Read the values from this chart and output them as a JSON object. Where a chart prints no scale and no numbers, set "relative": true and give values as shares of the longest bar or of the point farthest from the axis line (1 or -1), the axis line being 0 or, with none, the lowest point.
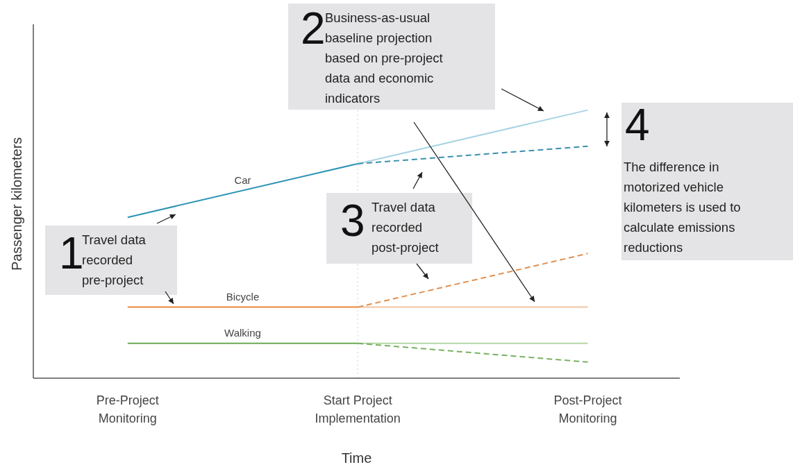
{
  "chart_data": {
    "type": "line",
    "relative": true,
    "xlabel": "Time",
    "ylabel": "Passenger kilometers",
    "categories": [
      "Pre-Project Monitoring",
      "Start Project Implementation",
      "Post-Project Monitoring"
    ],
    "marker": "none",
    "tick_labels": "x",
    "series": [
      {
        "name": "Car",
        "color": "#2c94b4",
        "line_style": "solid",
        "values": [
          0.6,
          0.8,
          null
        ]
      },
      {
        "color": "#a8d4e4",
        "line_style": "solid",
        "values": [
          null,
          0.8,
          1
        ]
      },
      {
        "color": "#3a8fae",
        "line_style": "dashed",
        "values": [
          null,
          0.8,
          0.865
        ]
      },
      {
        "name": "Bicycle",
        "color": "#e8893a",
        "line_style": "solid",
        "values": [
          0.265,
          0.265,
          null
        ]
      },
      {
        "color": "#f2c4a0",
        "line_style": "solid",
        "values": [
          null,
          0.265,
          0.265
        ]
      },
      {
        "color": "#e09050",
        "line_style": "dashed",
        "values": [
          null,
          0.265,
          0.465
        ]
      },
      {
        "name": "Walking",
        "color": "#6aa84f",
        "line_style": "solid",
        "values": [
          0.13,
          0.13,
          null
        ]
      },
      {
        "color": "#b5d6a5",
        "line_style": "solid",
        "values": [
          null,
          0.13,
          0.13
        ]
      },
      {
        "color": "#78b060",
        "line_style": "dashed",
        "values": [
          null,
          0.13,
          0.06
        ]
      }
    ],
    "ref_lines": [
      {
        "axis": "x",
        "value": "Start Project Implementation",
        "color": "#d0d0d0",
        "line_style": "dotted"
      }
    ],
    "annotations": [
      "1",
      "Travel data recorded pre-project",
      "2",
      "Business-as-usual baseline projection based on pre-project data and economic indicators",
      "3",
      "Travel data recorded post-project",
      "4",
      "The difference in motorized vehicle kilometers is used to calculate emissions reductions"
    ]
  }
}
